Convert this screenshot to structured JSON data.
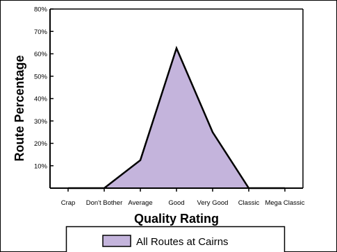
{
  "chart_data": {
    "type": "area",
    "categories": [
      "Crap",
      "Don't Bother",
      "Average",
      "Good",
      "Very Good",
      "Classic",
      "Mega Classic"
    ],
    "series": [
      {
        "name": "All Routes at Cairns",
        "values": [
          0,
          0,
          12.5,
          62.5,
          25,
          0,
          0
        ]
      }
    ],
    "xlabel": "Quality Rating",
    "ylabel": "Route Percentage",
    "ylim": [
      0,
      80
    ],
    "yticks": [
      10,
      20,
      30,
      40,
      50,
      60,
      70,
      80
    ],
    "ytick_labels": [
      "10%",
      "20%",
      "30%",
      "40%",
      "50%",
      "60%",
      "70%",
      "80%"
    ],
    "grid": false,
    "legend_position": "bottom",
    "colors": {
      "fill": "#c4b4dc",
      "stroke": "#000000",
      "background": "#ffffff"
    }
  }
}
